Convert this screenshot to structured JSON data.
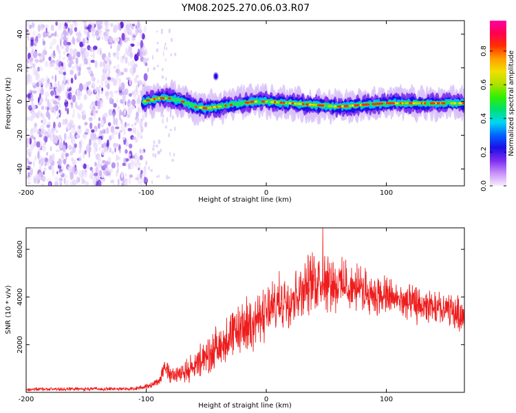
{
  "title": "YM08.2025.270.06.03.R07",
  "colors": {
    "frame": "#000000",
    "snr_line": "#ee1c1c",
    "noise_violet": "#7a2ee0",
    "noise_light": "#dcc8f8"
  },
  "colorbar": {
    "label": "Normalized spectral amplitude",
    "ticks": [
      "0.0",
      "0.2",
      "0.4",
      "0.6",
      "0.8"
    ],
    "tick_values": [
      0.0,
      0.2,
      0.4,
      0.6,
      0.8
    ],
    "range": [
      0,
      0.98
    ],
    "colormap": [
      "#f7eefd",
      "#c890f8",
      "#7b2cf0",
      "#1c10e8",
      "#0064ff",
      "#00d8f0",
      "#00e070",
      "#30f000",
      "#b0e000",
      "#f0e000",
      "#ffa000",
      "#ff3000",
      "#ff0050",
      "#ff00a0"
    ]
  },
  "chart_data": [
    {
      "type": "heatmap",
      "xlabel": "Height of straight line (km)",
      "ylabel": "Frequency (Hz)",
      "xlim": [
        -200,
        165
      ],
      "ylim": [
        -50,
        48
      ],
      "xticks": [
        -200,
        -100,
        0,
        100
      ],
      "yticks": [
        -40,
        -20,
        0,
        20,
        40
      ],
      "xtick_labels": [
        "-200",
        "-100",
        "0",
        "100"
      ],
      "ytick_labels": [
        "-40",
        "-20",
        "0",
        "20",
        "40"
      ],
      "noise_region_km": [
        -200,
        -100
      ],
      "signal_start_km": -103,
      "ridge": {
        "x_km": [
          -103,
          -90,
          -80,
          -70,
          -60,
          -50,
          -40,
          -30,
          -20,
          -10,
          0,
          20,
          40,
          60,
          80,
          100,
          120,
          140,
          165
        ],
        "freq_hz": [
          0,
          2,
          2,
          0,
          -3,
          -4,
          -3,
          -2,
          -1,
          0,
          0,
          -1,
          -2,
          -3,
          -2,
          -1,
          -1,
          -1,
          -1
        ]
      },
      "isolated_blob": {
        "x_km": -42,
        "freq_hz": 15
      }
    },
    {
      "type": "line",
      "xlabel": "Height of straight line (km)",
      "ylabel": "SNR (10 * v/v)",
      "xlim": [
        -200,
        165
      ],
      "ylim": [
        0,
        6900
      ],
      "xticks": [
        -200,
        -100,
        0,
        100
      ],
      "yticks": [
        2000,
        4000,
        6000
      ],
      "xtick_labels": [
        "-200",
        "-100",
        "0",
        "100"
      ],
      "ytick_labels": [
        "2000",
        "4000",
        "6000"
      ],
      "envelope": {
        "x_km": [
          -200,
          -110,
          -95,
          -88,
          -85,
          -80,
          -70,
          -60,
          -50,
          -40,
          -30,
          -20,
          -10,
          -5,
          0,
          10,
          20,
          30,
          40,
          50,
          60,
          70,
          80,
          90,
          100,
          110,
          120,
          130,
          140,
          150,
          160,
          165
        ],
        "mean": [
          130,
          150,
          300,
          600,
          1200,
          700,
          800,
          1100,
          1500,
          1900,
          2300,
          2700,
          3000,
          3100,
          3300,
          3700,
          4000,
          4300,
          4700,
          4800,
          4500,
          4400,
          4300,
          4100,
          4000,
          3900,
          3700,
          3600,
          3500,
          3400,
          3300,
          3200
        ],
        "spread": [
          90,
          90,
          150,
          300,
          600,
          400,
          500,
          700,
          900,
          1100,
          1200,
          1300,
          1300,
          1300,
          1400,
          1400,
          1400,
          1400,
          1500,
          1500,
          1300,
          1200,
          1100,
          1000,
          1000,
          900,
          900,
          900,
          900,
          900,
          900,
          900
        ]
      },
      "peak": {
        "x_km": 47,
        "value": 6900
      }
    }
  ]
}
